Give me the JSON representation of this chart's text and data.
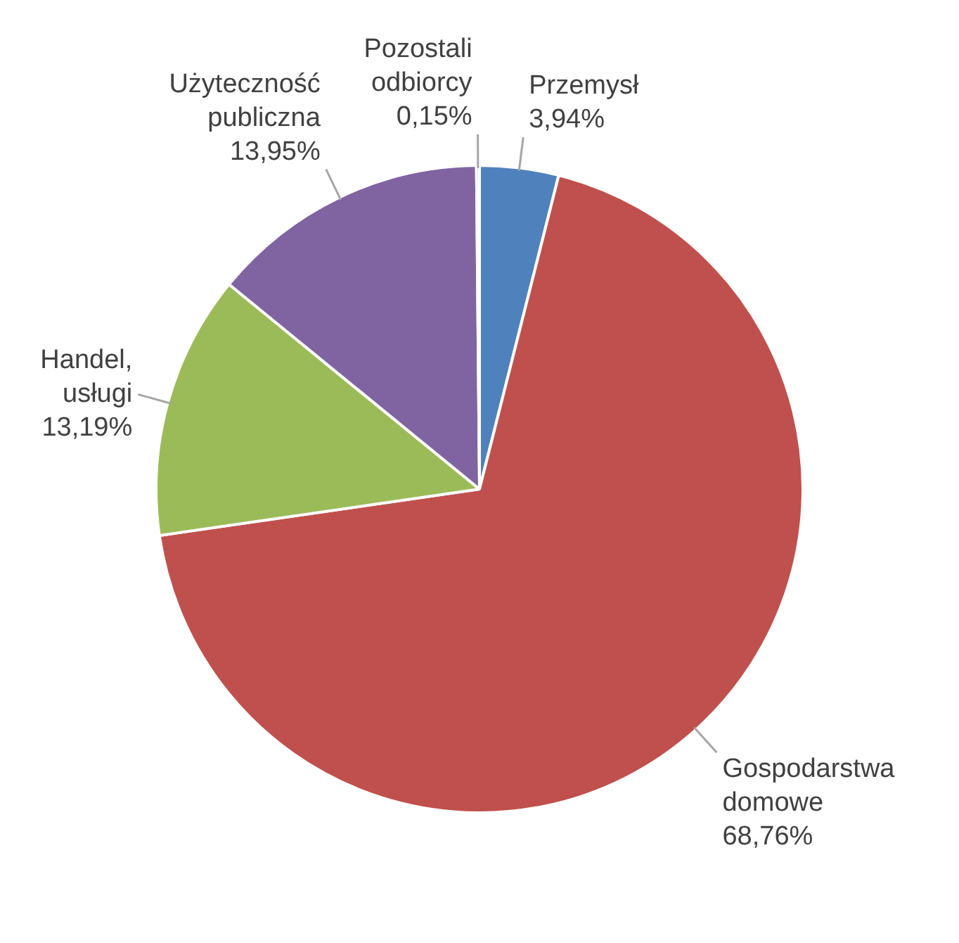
{
  "chart_data": {
    "type": "pie",
    "categories": [
      "Przemysł",
      "Gospodarstwa domowe",
      "Handel, usługi",
      "Użyteczność publiczna",
      "Pozostali odbiorcy"
    ],
    "values": [
      3.94,
      68.76,
      13.19,
      13.95,
      0.15
    ],
    "colors": [
      "#4f81bd",
      "#c0504d",
      "#9bbb59",
      "#8064a2",
      "#4bacc6"
    ],
    "value_labels": [
      "3,94%",
      "68,76%",
      "13,19%",
      "13,95%",
      "0,15%"
    ],
    "legend": false
  }
}
